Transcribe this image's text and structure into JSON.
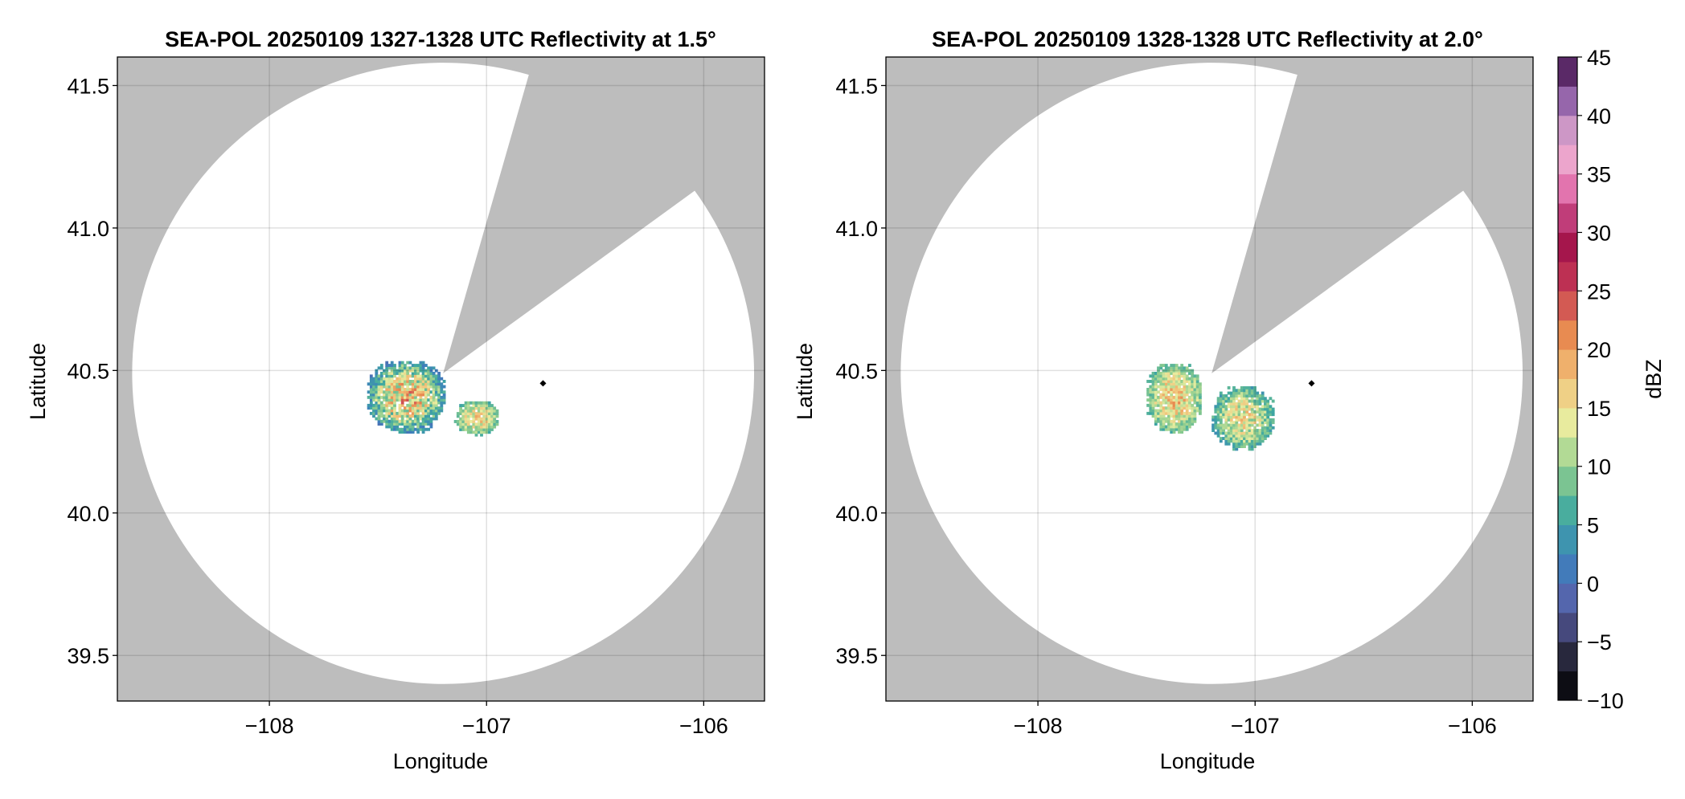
{
  "panels": [
    {
      "title": "SEA-POL 20250109 1327-1328 UTC Reflectivity at 1.5°",
      "xlabel": "Longitude",
      "ylabel": "Latitude"
    },
    {
      "title": "SEA-POL 20250109 1328-1328 UTC Reflectivity at 2.0°",
      "xlabel": "Longitude",
      "ylabel": "Latitude"
    }
  ],
  "colorbar": {
    "label": "dBZ",
    "ticks": [
      "45",
      "40",
      "35",
      "30",
      "25",
      "20",
      "15",
      "10",
      "5",
      "0",
      "−5",
      "−10"
    ],
    "range": [
      -10,
      45
    ],
    "colormap_stops": [
      "#000000",
      "#2a2a40",
      "#5a5fa8",
      "#3e7fbd",
      "#3ea8a0",
      "#8dcc8e",
      "#e8eda0",
      "#f2c27a",
      "#e8884f",
      "#c53a55",
      "#a0104a",
      "#e06aa8",
      "#f0b6d6",
      "#9a6ab0",
      "#3c0a45"
    ]
  },
  "chart_data": [
    {
      "type": "heatmap",
      "title": "SEA-POL 20250109 1327-1328 UTC Reflectivity at 1.5°",
      "xlabel": "Longitude",
      "ylabel": "Latitude",
      "xlim": [
        -108.7,
        -105.72
      ],
      "ylim": [
        39.34,
        41.6
      ],
      "xticks": [
        -108,
        -107,
        -106
      ],
      "xtick_labels": [
        "−108",
        "−107",
        "−106"
      ],
      "yticks": [
        39.5,
        40.0,
        40.5,
        41.0,
        41.5
      ],
      "ytick_labels": [
        "39.5",
        "40.0",
        "40.5",
        "41.0",
        "41.5"
      ],
      "grid": true,
      "background_color": "#bdbdbd",
      "radar_site": [
        -107.2,
        40.49
      ],
      "radar_range_deg_lat": 1.09,
      "blocked_sectors_azimuth_deg": [
        [
          16,
          54
        ]
      ],
      "marker_point": [
        -106.74,
        40.455
      ],
      "echoes": [
        {
          "lon_range": [
            -107.55,
            -107.2
          ],
          "lat_range": [
            40.28,
            40.53
          ],
          "dbz_range": [
            0,
            25
          ]
        },
        {
          "lon_range": [
            -107.15,
            -106.95
          ],
          "lat_range": [
            40.27,
            40.39
          ],
          "dbz_range": [
            5,
            20
          ]
        }
      ],
      "colorbar_label": "dBZ"
    },
    {
      "type": "heatmap",
      "title": "SEA-POL 20250109 1328-1328 UTC Reflectivity at 2.0°",
      "xlabel": "Longitude",
      "ylabel": "Latitude",
      "xlim": [
        -108.7,
        -105.72
      ],
      "ylim": [
        39.34,
        41.6
      ],
      "xticks": [
        -108,
        -107,
        -106
      ],
      "xtick_labels": [
        "−108",
        "−107",
        "−106"
      ],
      "yticks": [
        39.5,
        40.0,
        40.5,
        41.0,
        41.5
      ],
      "ytick_labels": [
        "39.5",
        "40.0",
        "40.5",
        "41.0",
        "41.5"
      ],
      "grid": true,
      "background_color": "#bdbdbd",
      "radar_site": [
        -107.2,
        40.49
      ],
      "radar_range_deg_lat": 1.09,
      "blocked_sectors_azimuth_deg": [
        [
          16,
          54
        ]
      ],
      "marker_point": [
        -106.74,
        40.455
      ],
      "echoes": [
        {
          "lon_range": [
            -107.5,
            -107.25
          ],
          "lat_range": [
            40.28,
            40.52
          ],
          "dbz_range": [
            5,
            22
          ]
        },
        {
          "lon_range": [
            -107.2,
            -106.92
          ],
          "lat_range": [
            40.22,
            40.44
          ],
          "dbz_range": [
            3,
            20
          ]
        }
      ],
      "colorbar_label": "dBZ"
    }
  ]
}
